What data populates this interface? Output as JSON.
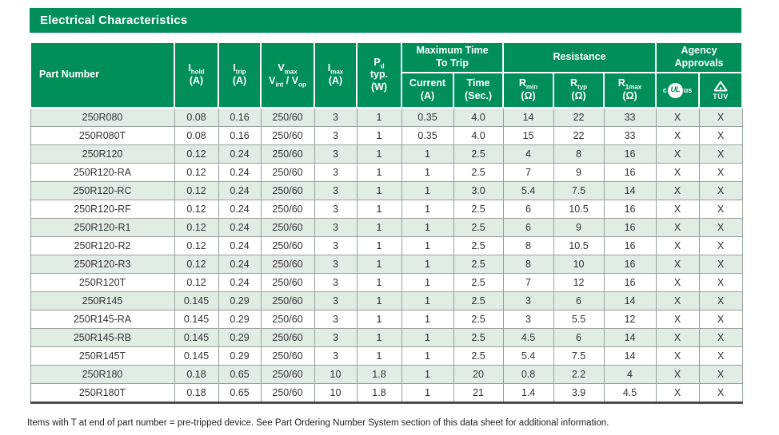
{
  "colors": {
    "green": "#008F5B",
    "row_alt": "#E1ECE4",
    "border_gray": "#98a29c",
    "heavy_border": "#4d4d4d"
  },
  "title": "Electrical Characteristics",
  "table": {
    "headers": {
      "part_number": "Part Number",
      "i_hold": {
        "base": "I",
        "sub": "hold",
        "unit": "(A)"
      },
      "i_trip": {
        "base": "I",
        "sub": "trip",
        "unit": "(A)"
      },
      "v": {
        "l1_base": "V",
        "l1_sub": "max",
        "l2_base1": "V",
        "l2_sub1": "int",
        "l2_sep": " / ",
        "l2_base2": "V",
        "l2_sub2": "op"
      },
      "i_max": {
        "base": "I",
        "sub": "max",
        "unit": "(A)"
      },
      "p_d": {
        "base": "P",
        "sub": "d",
        "line2": "typ.",
        "line3": "(W)"
      },
      "max_time_to_trip": {
        "line1": "Maximum Time",
        "line2": "To Trip"
      },
      "current": {
        "line1": "Current",
        "line2": "(A)"
      },
      "time": {
        "line1": "Time",
        "line2": "(Sec.)"
      },
      "resistance": "Resistance",
      "r_min": {
        "base": "R",
        "sub": "min",
        "unit": "(Ω)"
      },
      "r_typ": {
        "base": "R",
        "sub": "typ",
        "unit": "(Ω)"
      },
      "r_1max": {
        "base": "R",
        "sub": "1max",
        "unit": "(Ω)"
      },
      "agency": {
        "line1": "Agency",
        "line2": "Approvals"
      },
      "cul": {
        "c": "c",
        "ul": "UL",
        "us": "us"
      },
      "tuv": {
        "label": "TÜV"
      }
    },
    "column_names": [
      "part-number",
      "i-hold",
      "i-trip",
      "v-max",
      "i-max",
      "p-d-typ",
      "trip-current",
      "trip-time",
      "r-min",
      "r-typ",
      "r-1max",
      "cul-approval",
      "tuv-approval"
    ],
    "rows": [
      [
        "250R080",
        "0.08",
        "0.16",
        "250/60",
        "3",
        "1",
        "0.35",
        "4.0",
        "14",
        "22",
        "33",
        "X",
        "X"
      ],
      [
        "250R080T",
        "0.08",
        "0.16",
        "250/60",
        "3",
        "1",
        "0.35",
        "4.0",
        "15",
        "22",
        "33",
        "X",
        "X"
      ],
      [
        "250R120",
        "0.12",
        "0.24",
        "250/60",
        "3",
        "1",
        "1",
        "2.5",
        "4",
        "8",
        "16",
        "X",
        "X"
      ],
      [
        "250R120-RA",
        "0.12",
        "0.24",
        "250/60",
        "3",
        "1",
        "1",
        "2.5",
        "7",
        "9",
        "16",
        "X",
        "X"
      ],
      [
        "250R120-RC",
        "0.12",
        "0.24",
        "250/60",
        "3",
        "1",
        "1",
        "3.0",
        "5.4",
        "7.5",
        "14",
        "X",
        "X"
      ],
      [
        "250R120-RF",
        "0.12",
        "0.24",
        "250/60",
        "3",
        "1",
        "1",
        "2.5",
        "6",
        "10.5",
        "16",
        "X",
        "X"
      ],
      [
        "250R120-R1",
        "0.12",
        "0.24",
        "250/60",
        "3",
        "1",
        "1",
        "2.5",
        "6",
        "9",
        "16",
        "X",
        "X"
      ],
      [
        "250R120-R2",
        "0.12",
        "0.24",
        "250/60",
        "3",
        "1",
        "1",
        "2.5",
        "8",
        "10.5",
        "16",
        "X",
        "X"
      ],
      [
        "250R120-R3",
        "0.12",
        "0.24",
        "250/60",
        "3",
        "1",
        "1",
        "2.5",
        "8",
        "10",
        "16",
        "X",
        "X"
      ],
      [
        "250R120T",
        "0.12",
        "0.24",
        "250/60",
        "3",
        "1",
        "1",
        "2.5",
        "7",
        "12",
        "16",
        "X",
        "X"
      ],
      [
        "250R145",
        "0.145",
        "0.29",
        "250/60",
        "3",
        "1",
        "1",
        "2.5",
        "3",
        "6",
        "14",
        "X",
        "X"
      ],
      [
        "250R145-RA",
        "0.145",
        "0.29",
        "250/60",
        "3",
        "1",
        "1",
        "2.5",
        "3",
        "5.5",
        "12",
        "X",
        "X"
      ],
      [
        "250R145-RB",
        "0.145",
        "0.29",
        "250/60",
        "3",
        "1",
        "1",
        "2.5",
        "4.5",
        "6",
        "14",
        "X",
        "X"
      ],
      [
        "250R145T",
        "0.145",
        "0.29",
        "250/60",
        "3",
        "1",
        "1",
        "2.5",
        "5.4",
        "7.5",
        "14",
        "X",
        "X"
      ],
      [
        "250R180",
        "0.18",
        "0.65",
        "250/60",
        "10",
        "1.8",
        "1",
        "20",
        "0.8",
        "2.2",
        "4",
        "X",
        "X"
      ],
      [
        "250R180T",
        "0.18",
        "0.65",
        "250/60",
        "10",
        "1.8",
        "1",
        "21",
        "1.4",
        "3.9",
        "4.5",
        "X",
        "X"
      ]
    ]
  },
  "footnote": "Items with T at end of part number = pre-tripped device. See Part Ordering Number System section of this data sheet for additional information."
}
